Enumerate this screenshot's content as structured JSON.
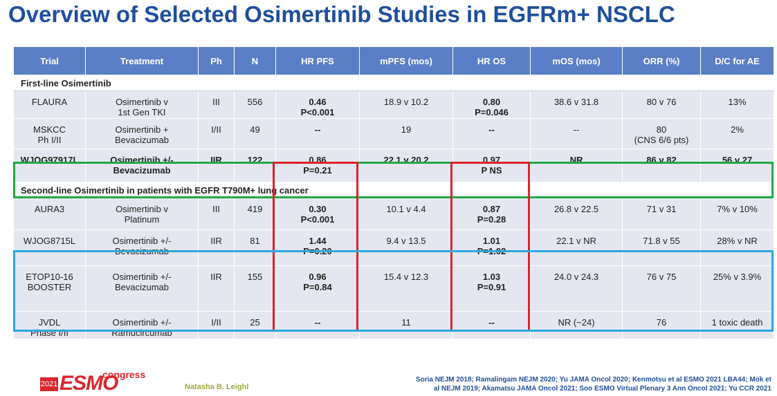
{
  "title": "Overview of Selected Osimertinib Studies in EGFRm+ NSCLC",
  "headers": [
    "Trial",
    "Treatment",
    "Ph",
    "N",
    "HR PFS",
    "mPFS (mos)",
    "HR OS",
    "mOS (mos)",
    "ORR (%)",
    "D/C for AE"
  ],
  "section1": "First-line Osimertinib",
  "section2": "Second-line Osimertinib in patients with EGFR T790M+ lung cancer",
  "rows": [
    {
      "trial": "FLAURA",
      "trial2": "",
      "treat": "Osimertinib v",
      "treat2": "1st Gen TKI",
      "ph": "III",
      "n": "556",
      "hrpfs": "0.46",
      "hrpfs2": "P<0.001",
      "mpfs": "18.9 v 10.2",
      "hros": "0.80",
      "hros2": "P=0.046",
      "mos": "38.6 v 31.8",
      "orr": "80 v 76",
      "orr2": "",
      "dc": "13%"
    },
    {
      "trial": "MSKCC",
      "trial2": "Ph I/II",
      "treat": "Osimertinib +",
      "treat2": "Bevacizumab",
      "ph": "I/II",
      "n": "49",
      "hrpfs": "--",
      "hrpfs2": "",
      "mpfs": "19",
      "hros": "--",
      "hros2": "",
      "mos": "--",
      "orr": "80",
      "orr2": "(CNS 6/6 pts)",
      "dc": "2%"
    },
    {
      "trial": "WJOG97917L",
      "trial2": "",
      "treat": "Osimertinib +/-",
      "treat2": "Bevacizumab",
      "ph": "IIR",
      "n": "122",
      "hrpfs": "0.86",
      "hrpfs2": "P=0.21",
      "mpfs": "22.1 v 20.2",
      "hros": "0.97",
      "hros2": "P NS",
      "mos": "NR",
      "orr": "86 v 82",
      "orr2": "",
      "dc": "56 v 27"
    },
    {
      "trial": "AURA3",
      "trial2": "",
      "treat": "Osimertinib v",
      "treat2": "Platinum",
      "ph": "III",
      "n": "419",
      "hrpfs": "0.30",
      "hrpfs2": "P<0.001",
      "mpfs": "10.1 v 4.4",
      "hros": "0.87",
      "hros2": "P=0.28",
      "mos": "26.8 v 22.5",
      "orr": "71 v 31",
      "orr2": "",
      "dc": "7% v 10%"
    },
    {
      "trial": "WJOG8715L",
      "trial2": "",
      "treat": "Osimertinib +/-",
      "treat2": "Bevacizumab",
      "ph": "IIR",
      "n": "81",
      "hrpfs": "1.44",
      "hrpfs2": "P=0.20",
      "mpfs": "9.4 v 13.5",
      "hros": "1.01",
      "hros2": "P=1.02",
      "mos": "22.1 v NR",
      "orr": "71.8 v 55",
      "orr2": "",
      "dc": "28% v NR"
    },
    {
      "trial": "ETOP10-16",
      "trial2": "BOOSTER",
      "treat": "Osimertinib +/-",
      "treat2": "Bevacizumab",
      "ph": "IIR",
      "n": "155",
      "hrpfs": "0.96",
      "hrpfs2": "P=0.84",
      "mpfs": "15.4 v 12.3",
      "hros": "1.03",
      "hros2": "P=0.91",
      "mos": "24.0 v 24.3",
      "orr": "76 v 75",
      "orr2": "",
      "dc": "25% v 3.9%"
    },
    {
      "trial": "JVDL",
      "trial2": "Phase I/II",
      "treat": "Osimertinib +/-",
      "treat2": "Ramucircumab",
      "ph": "I/II",
      "n": "25",
      "hrpfs": "--",
      "hrpfs2": "",
      "mpfs": "11",
      "hros": "--",
      "hros2": "",
      "mos": "NR (~24)",
      "orr": "76",
      "orr2": "",
      "dc": "1 toxic death"
    }
  ],
  "footer": {
    "year": "2021",
    "logo": "ESMO",
    "congress": "congress",
    "presenter": "Natasha B. Leighl",
    "refs_line1": "Soria NEJM 2018; Ramalingam NEJM 2020; Yu JAMA Oncol 2020; Kenmotsu et al ESMO 2021 LBA44; Mok et",
    "refs_line2": "al NEJM 2019; Akamatsu JAMA Oncol 2021; Soo ESMO Virtual Plenary 3 Ann Oncol 2021; Yu CCR 2021"
  },
  "colors": {
    "header_bg": "#5b7fc6",
    "row_bg": "#e4e7ef",
    "title": "#1f4e9c",
    "green_box": "#22a845",
    "red_box": "#e0202a",
    "blue_box": "#2aa7e0"
  }
}
